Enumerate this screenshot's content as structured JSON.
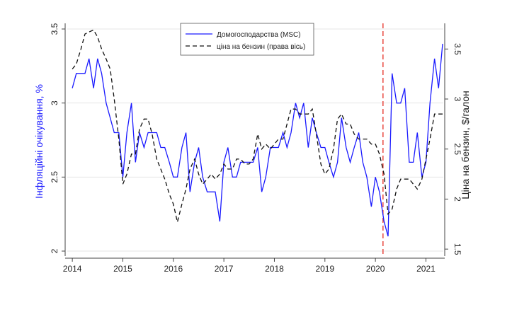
{
  "chart_data": {
    "type": "line",
    "ylabel": "Інфляційні очікування, %",
    "y2label": "Ціна на бензин, $/галон",
    "x": [
      2014,
      2014.08,
      2014.17,
      2014.25,
      2014.33,
      2014.42,
      2014.5,
      2014.58,
      2014.67,
      2014.75,
      2014.83,
      2014.92,
      2015,
      2015.08,
      2015.17,
      2015.25,
      2015.33,
      2015.42,
      2015.5,
      2015.58,
      2015.67,
      2015.75,
      2015.83,
      2015.92,
      2016,
      2016.08,
      2016.17,
      2016.25,
      2016.33,
      2016.42,
      2016.5,
      2016.58,
      2016.67,
      2016.75,
      2016.83,
      2016.92,
      2017,
      2017.08,
      2017.17,
      2017.25,
      2017.33,
      2017.42,
      2017.5,
      2017.58,
      2017.67,
      2017.75,
      2017.83,
      2017.92,
      2018,
      2018.08,
      2018.17,
      2018.25,
      2018.33,
      2018.42,
      2018.5,
      2018.58,
      2018.67,
      2018.75,
      2018.83,
      2018.92,
      2019,
      2019.08,
      2019.17,
      2019.25,
      2019.33,
      2019.42,
      2019.5,
      2019.58,
      2019.67,
      2019.75,
      2019.83,
      2019.92,
      2020,
      2020.08,
      2020.17,
      2020.25,
      2020.33,
      2020.42,
      2020.5,
      2020.58,
      2020.67,
      2020.75,
      2020.83,
      2020.92,
      2021,
      2021.08,
      2021.17,
      2021.25,
      2021.33
    ],
    "series": [
      {
        "name": "Домогосподарства (MSC)",
        "color": "#1a1aff",
        "axis": "y",
        "values": [
          3.1,
          3.2,
          3.2,
          3.2,
          3.3,
          3.1,
          3.3,
          3.2,
          3.0,
          2.9,
          2.8,
          2.8,
          2.5,
          2.8,
          3.0,
          2.6,
          2.8,
          2.7,
          2.8,
          2.8,
          2.8,
          2.7,
          2.7,
          2.6,
          2.5,
          2.5,
          2.7,
          2.8,
          2.4,
          2.6,
          2.7,
          2.5,
          2.4,
          2.4,
          2.4,
          2.2,
          2.6,
          2.7,
          2.5,
          2.5,
          2.6,
          2.6,
          2.6,
          2.6,
          2.7,
          2.4,
          2.5,
          2.7,
          2.7,
          2.7,
          2.8,
          2.7,
          2.8,
          3.0,
          2.9,
          3.0,
          2.7,
          2.9,
          2.8,
          2.7,
          2.7,
          2.6,
          2.5,
          2.6,
          2.9,
          2.7,
          2.6,
          2.7,
          2.8,
          2.6,
          2.5,
          2.3,
          2.5,
          2.4,
          2.2,
          2.1,
          3.2,
          3.0,
          3.0,
          3.1,
          2.6,
          2.6,
          2.8,
          2.5,
          2.6,
          3.0,
          3.3,
          3.1,
          3.4
        ]
      },
      {
        "name": "ціна на бензин (права вісь)",
        "color": "#111111",
        "axis": "y2",
        "dashed": true,
        "values": [
          3.3,
          3.35,
          3.5,
          3.65,
          3.67,
          3.69,
          3.62,
          3.5,
          3.4,
          3.3,
          3.0,
          2.6,
          2.15,
          2.25,
          2.45,
          2.45,
          2.7,
          2.8,
          2.8,
          2.65,
          2.4,
          2.3,
          2.2,
          2.05,
          1.95,
          1.77,
          1.95,
          2.1,
          2.3,
          2.4,
          2.25,
          2.15,
          2.2,
          2.25,
          2.2,
          2.25,
          2.35,
          2.3,
          2.3,
          2.4,
          2.4,
          2.35,
          2.35,
          2.4,
          2.65,
          2.5,
          2.55,
          2.5,
          2.55,
          2.6,
          2.6,
          2.75,
          2.9,
          2.9,
          2.85,
          2.85,
          2.85,
          2.9,
          2.65,
          2.35,
          2.25,
          2.3,
          2.5,
          2.8,
          2.85,
          2.75,
          2.75,
          2.65,
          2.6,
          2.6,
          2.6,
          2.55,
          2.55,
          2.45,
          2.25,
          1.85,
          1.9,
          2.1,
          2.2,
          2.2,
          2.2,
          2.15,
          2.1,
          2.2,
          2.4,
          2.6,
          2.85,
          2.85,
          2.85
        ]
      }
    ],
    "vline": {
      "value": 2020.15,
      "color": "#e8473f"
    },
    "xlim": [
      2013.9,
      2021.4
    ],
    "xticks": [
      2014,
      2015,
      2016,
      2017,
      2018,
      2019,
      2020,
      2021
    ],
    "ylim": [
      2,
      3.5
    ],
    "yticks": [
      2,
      2.5,
      3,
      3.5
    ],
    "y2lim": [
      1.48,
      3.7
    ],
    "y2ticks": [
      1.5,
      2,
      2.5,
      3,
      3.5
    ],
    "grid": true,
    "legend": "top"
  }
}
